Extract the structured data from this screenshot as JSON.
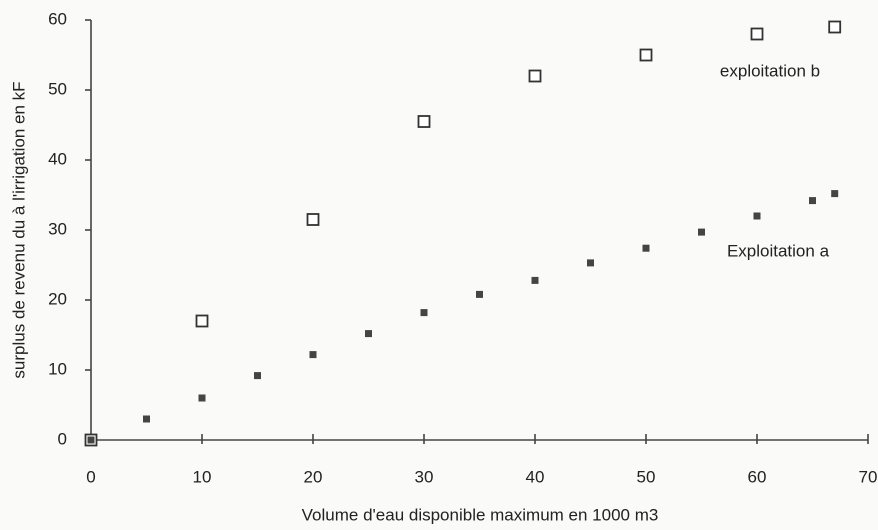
{
  "chart_data": {
    "type": "line",
    "x_label": "Volume d'eau disponible maximum en 1000 m3",
    "y_label": "surplus de revenu du à l'irrigation en kF",
    "xlim": [
      0,
      70
    ],
    "ylim": [
      0,
      60
    ],
    "xticks": [
      0,
      10,
      20,
      30,
      40,
      50,
      60,
      70
    ],
    "yticks": [
      0,
      10,
      20,
      30,
      40,
      50,
      60
    ],
    "grid": false,
    "series": [
      {
        "name": "exploitation b",
        "color": "#333333",
        "marker": "open-square",
        "x": [
          0,
          10,
          20,
          30,
          40,
          50,
          60,
          67
        ],
        "values": [
          0,
          17,
          31.5,
          45.5,
          52,
          55,
          58,
          59
        ]
      },
      {
        "name": "Exploitation a",
        "color": "#444444",
        "marker": "filled-square",
        "x": [
          0,
          5,
          10,
          15,
          20,
          25,
          30,
          35,
          40,
          45,
          50,
          55,
          60,
          65,
          67
        ],
        "values": [
          0,
          3,
          6,
          9.2,
          12.2,
          15.2,
          18.2,
          20.8,
          22.8,
          25.3,
          27.4,
          29.7,
          32,
          34.2,
          35.2
        ]
      }
    ]
  }
}
